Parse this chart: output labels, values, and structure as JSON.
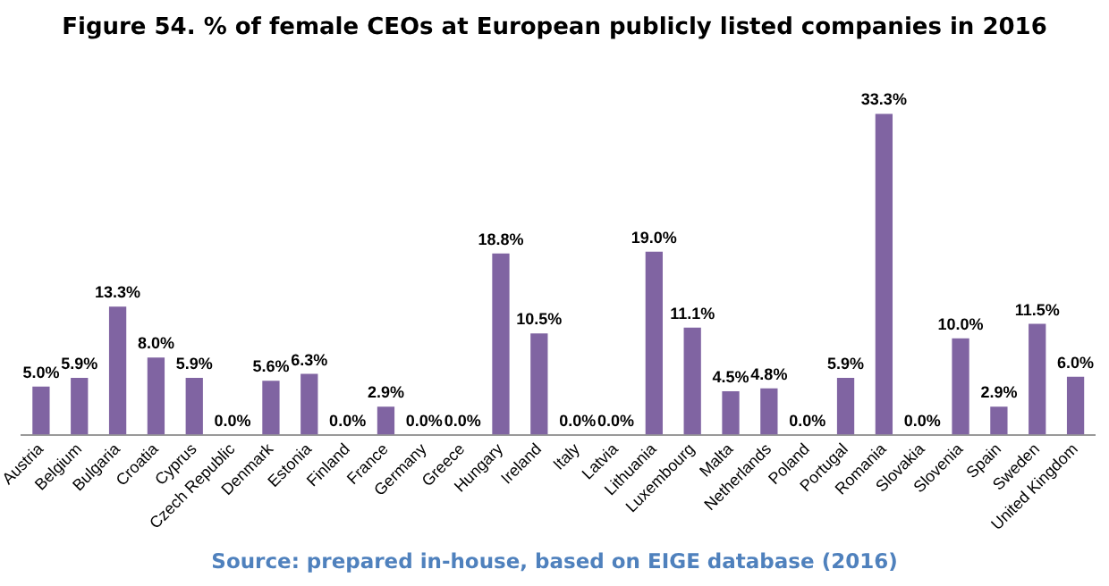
{
  "chart_data": {
    "type": "bar",
    "title": "Figure 54. % of female CEOs at European publicly listed companies in 2016",
    "categories": [
      "Austria",
      "Belgium",
      "Bulgaria",
      "Croatia",
      "Cyprus",
      "Czech Republic",
      "Denmark",
      "Estonia",
      "Finland",
      "France",
      "Germany",
      "Greece",
      "Hungary",
      "Ireland",
      "Italy",
      "Latvia",
      "Lithuania",
      "Luxembourg",
      "Malta",
      "Netherlands",
      "Poland",
      "Portugal",
      "Romania",
      "Slovakia",
      "Slovenia",
      "Spain",
      "Sweden",
      "United Kingdom"
    ],
    "values": [
      5.0,
      5.9,
      13.3,
      8.0,
      5.9,
      0.0,
      5.6,
      6.3,
      0.0,
      2.9,
      0.0,
      0.0,
      18.8,
      10.5,
      0.0,
      0.0,
      19.0,
      11.1,
      4.5,
      4.8,
      0.0,
      5.9,
      33.3,
      0.0,
      10.0,
      2.9,
      11.5,
      6.0
    ],
    "value_labels": [
      "5.0%",
      "5.9%",
      "13.3%",
      "8.0%",
      "5.9%",
      "0.0%",
      "5.6%",
      "6.3%",
      "0.0%",
      "2.9%",
      "0.0%",
      "0.0%",
      "18.8%",
      "10.5%",
      "0.0%",
      "0.0%",
      "19.0%",
      "11.1%",
      "4.5%",
      "4.8%",
      "0.0%",
      "5.9%",
      "33.3%",
      "0.0%",
      "10.0%",
      "2.9%",
      "11.5%",
      "6.0%"
    ],
    "color": "#8064a2",
    "grid": false,
    "legend": false,
    "annotations": [
      "Source: prepared in-house, based on EIGE database (2016)"
    ]
  }
}
